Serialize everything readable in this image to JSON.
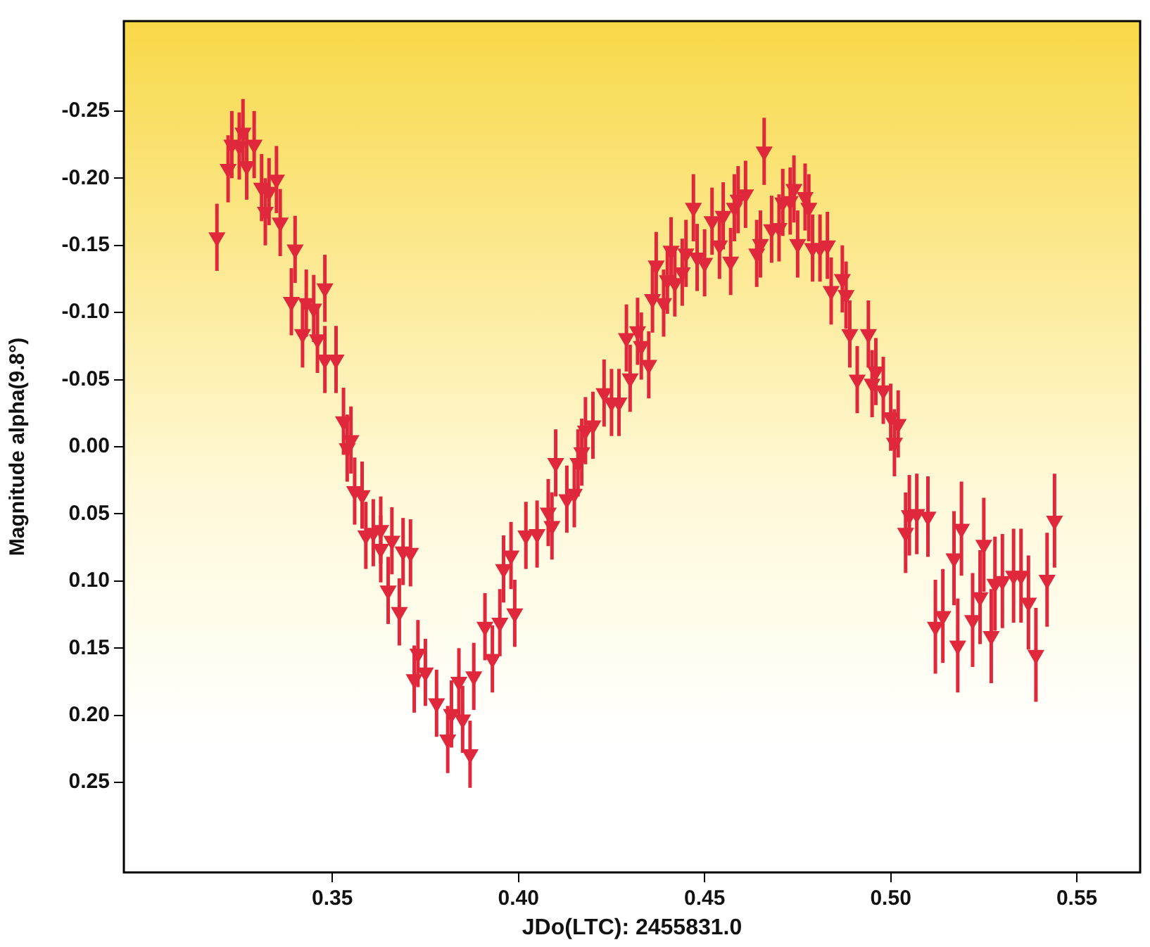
{
  "chart_data": {
    "type": "scatter",
    "xlabel": "JDo(LTC): 2455831.0",
    "ylabel": "Magnitude alpha(9.8°)",
    "xlim": [
      0.294,
      0.567
    ],
    "ylim": [
      0.317,
      -0.317
    ],
    "xticks": [
      {
        "value": 0.35,
        "label": "0.35"
      },
      {
        "value": 0.4,
        "label": "0.40"
      },
      {
        "value": 0.45,
        "label": "0.45"
      },
      {
        "value": 0.5,
        "label": "0.50"
      },
      {
        "value": 0.55,
        "label": "0.55"
      }
    ],
    "yticks": [
      {
        "value": -0.25,
        "label": "-0.25"
      },
      {
        "value": -0.2,
        "label": "-0.20"
      },
      {
        "value": -0.15,
        "label": "-0.15"
      },
      {
        "value": -0.1,
        "label": "-0.10"
      },
      {
        "value": -0.05,
        "label": "-0.05"
      },
      {
        "value": 0,
        "label": "0.00"
      },
      {
        "value": 0.05,
        "label": "0.05"
      },
      {
        "value": 0.1,
        "label": "0.10"
      },
      {
        "value": 0.15,
        "label": "0.15"
      },
      {
        "value": 0.2,
        "label": "0.20"
      },
      {
        "value": 0.25,
        "label": "0.25"
      }
    ],
    "grid": false,
    "legend": false,
    "marker": "triangle",
    "series": [
      {
        "color": "#e0283c",
        "x": [
          0.319,
          0.322,
          0.323,
          0.325,
          0.326,
          0.327,
          0.329,
          0.331,
          0.332,
          0.333,
          0.335,
          0.336,
          0.34,
          0.339,
          0.343,
          0.345,
          0.342,
          0.348,
          0.346,
          0.348,
          0.351,
          0.353,
          0.355,
          0.354,
          0.356,
          0.358,
          0.359,
          0.361,
          0.363,
          0.363,
          0.365,
          0.366,
          0.368,
          0.369,
          0.371,
          0.372,
          0.373,
          0.375,
          0.378,
          0.381,
          0.382,
          0.384,
          0.385,
          0.387,
          0.388,
          0.391,
          0.393,
          0.395,
          0.396,
          0.398,
          0.399,
          0.402,
          0.405,
          0.408,
          0.409,
          0.41,
          0.413,
          0.415,
          0.416,
          0.417,
          0.418,
          0.42,
          0.423,
          0.425,
          0.427,
          0.429,
          0.43,
          0.432,
          0.433,
          0.435,
          0.436,
          0.437,
          0.439,
          0.44,
          0.441,
          0.442,
          0.444,
          0.445,
          0.447,
          0.448,
          0.45,
          0.452,
          0.454,
          0.455,
          0.457,
          0.458,
          0.459,
          0.461,
          0.464,
          0.465,
          0.466,
          0.468,
          0.47,
          0.471,
          0.473,
          0.474,
          0.475,
          0.477,
          0.478,
          0.479,
          0.481,
          0.483,
          0.484,
          0.487,
          0.488,
          0.489,
          0.491,
          0.494,
          0.495,
          0.496,
          0.498,
          0.5,
          0.501,
          0.502,
          0.504,
          0.505,
          0.507,
          0.51,
          0.512,
          0.514,
          0.517,
          0.518,
          0.519,
          0.522,
          0.524,
          0.525,
          0.527,
          0.528,
          0.53,
          0.533,
          0.535,
          0.537,
          0.539,
          0.542,
          0.544
        ],
        "values": [
          -0.156,
          -0.207,
          -0.225,
          -0.224,
          -0.234,
          -0.209,
          -0.225,
          -0.193,
          -0.175,
          -0.19,
          -0.199,
          -0.167,
          -0.147,
          -0.108,
          -0.107,
          -0.103,
          -0.084,
          -0.118,
          -0.08,
          -0.065,
          -0.065,
          -0.019,
          -0.005,
          0.001,
          0.033,
          0.036,
          0.066,
          0.064,
          0.062,
          0.076,
          0.107,
          0.07,
          0.123,
          0.078,
          0.079,
          0.173,
          0.154,
          0.168,
          0.191,
          0.218,
          0.199,
          0.175,
          0.203,
          0.229,
          0.171,
          0.134,
          0.158,
          0.131,
          0.091,
          0.081,
          0.124,
          0.066,
          0.065,
          0.049,
          0.059,
          0.012,
          0.039,
          0.035,
          0.012,
          0.004,
          -0.012,
          -0.016,
          -0.04,
          -0.033,
          -0.033,
          -0.081,
          -0.051,
          -0.086,
          -0.075,
          -0.061,
          -0.11,
          -0.135,
          -0.107,
          -0.124,
          -0.146,
          -0.122,
          -0.13,
          -0.144,
          -0.178,
          -0.141,
          -0.137,
          -0.168,
          -0.15,
          -0.172,
          -0.138,
          -0.178,
          -0.184,
          -0.188,
          -0.144,
          -0.151,
          -0.22,
          -0.162,
          -0.163,
          -0.182,
          -0.183,
          -0.192,
          -0.151,
          -0.186,
          -0.178,
          -0.148,
          -0.148,
          -0.15,
          -0.116,
          -0.125,
          -0.113,
          -0.084,
          -0.05,
          -0.084,
          -0.047,
          -0.056,
          -0.042,
          -0.022,
          -0.003,
          -0.017,
          0.064,
          0.051,
          0.05,
          0.052,
          0.134,
          0.126,
          0.083,
          0.148,
          0.061,
          0.129,
          0.112,
          0.073,
          0.141,
          0.102,
          0.1,
          0.096,
          0.096,
          0.116,
          0.155,
          0.099,
          0.055
        ],
        "errors": [
          0.025,
          0.025,
          0.025,
          0.025,
          0.025,
          0.025,
          0.025,
          0.025,
          0.025,
          0.025,
          0.025,
          0.025,
          0.025,
          0.025,
          0.025,
          0.025,
          0.025,
          0.025,
          0.025,
          0.025,
          0.025,
          0.025,
          0.025,
          0.025,
          0.025,
          0.025,
          0.025,
          0.025,
          0.025,
          0.025,
          0.025,
          0.025,
          0.025,
          0.025,
          0.025,
          0.025,
          0.025,
          0.025,
          0.025,
          0.025,
          0.025,
          0.025,
          0.025,
          0.025,
          0.025,
          0.025,
          0.025,
          0.025,
          0.025,
          0.025,
          0.025,
          0.025,
          0.025,
          0.025,
          0.025,
          0.025,
          0.025,
          0.025,
          0.025,
          0.025,
          0.025,
          0.025,
          0.025,
          0.025,
          0.025,
          0.025,
          0.025,
          0.025,
          0.025,
          0.025,
          0.025,
          0.025,
          0.025,
          0.025,
          0.025,
          0.025,
          0.025,
          0.025,
          0.025,
          0.025,
          0.025,
          0.025,
          0.025,
          0.025,
          0.025,
          0.025,
          0.025,
          0.025,
          0.025,
          0.025,
          0.025,
          0.025,
          0.025,
          0.025,
          0.025,
          0.025,
          0.025,
          0.025,
          0.025,
          0.025,
          0.025,
          0.025,
          0.025,
          0.025,
          0.025,
          0.025,
          0.025,
          0.025,
          0.025,
          0.025,
          0.025,
          0.025,
          0.025,
          0.025,
          0.03,
          0.03,
          0.03,
          0.03,
          0.035,
          0.035,
          0.035,
          0.035,
          0.035,
          0.035,
          0.035,
          0.035,
          0.035,
          0.035,
          0.035,
          0.035,
          0.035,
          0.035,
          0.035,
          0.035,
          0.035
        ]
      }
    ]
  }
}
